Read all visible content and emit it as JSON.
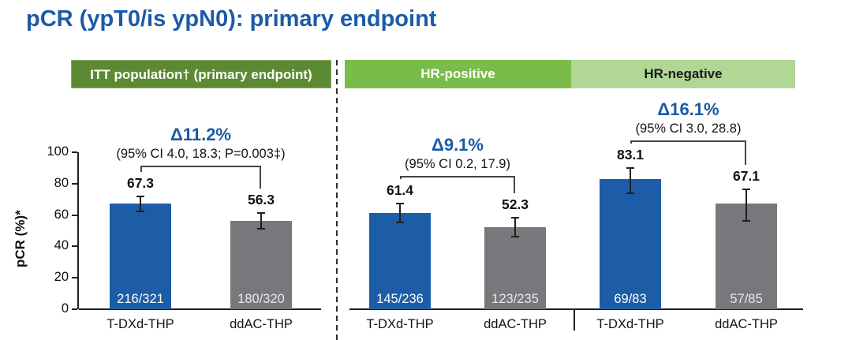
{
  "title": "pCR (ypT0/is ypN0): primary endpoint",
  "colors": {
    "title_blue": "#1b5aa5",
    "bar_blue": "#1d5da7",
    "bar_gray": "#77787b",
    "header_dark_green": "#5c8a32",
    "header_mid_green": "#79bc49",
    "header_light_green": "#b0d794"
  },
  "chart_data": {
    "type": "bar",
    "title": "pCR (ypT0/is ypN0): primary endpoint",
    "ylabel": "pCR (%)*",
    "ylim": [
      0,
      100
    ],
    "yticks": [
      0,
      20,
      40,
      60,
      80,
      100
    ],
    "grid": false,
    "legend": "none (arms labeled under bars)",
    "error_bars": "95% CI whiskers",
    "groups": [
      {
        "header": "ITT population† (primary endpoint)",
        "delta": "Δ11.2%",
        "ci_text": "(95% CI 4.0, 18.3; P=0.003‡)",
        "bars": [
          {
            "arm": "T-DXd-THP",
            "value": 67.3,
            "fraction": "216/321",
            "ci_low": 61.9,
            "ci_high": 72.4,
            "color": "blue"
          },
          {
            "arm": "ddAC-THP",
            "value": 56.3,
            "fraction": "180/320",
            "ci_low": 50.6,
            "ci_high": 61.8,
            "color": "gray"
          }
        ]
      },
      {
        "header": "HR-positive",
        "delta": "Δ9.1%",
        "ci_text": "(95% CI 0.2, 17.9)",
        "bars": [
          {
            "arm": "T-DXd-THP",
            "value": 61.4,
            "fraction": "145/236",
            "ci_low": 54.9,
            "ci_high": 67.6,
            "color": "blue"
          },
          {
            "arm": "ddAC-THP",
            "value": 52.3,
            "fraction": "123/235",
            "ci_low": 45.7,
            "ci_high": 58.9,
            "color": "gray"
          }
        ]
      },
      {
        "header": "HR-negative",
        "delta": "Δ16.1%",
        "ci_text": "(95% CI 3.0, 28.8)",
        "bars": [
          {
            "arm": "T-DXd-THP",
            "value": 83.1,
            "fraction": "69/83",
            "ci_low": 73.3,
            "ci_high": 90.5,
            "color": "blue"
          },
          {
            "arm": "ddAC-THP",
            "value": 67.1,
            "fraction": "57/85",
            "ci_low": 56.0,
            "ci_high": 77.0,
            "color": "gray"
          }
        ]
      }
    ]
  }
}
